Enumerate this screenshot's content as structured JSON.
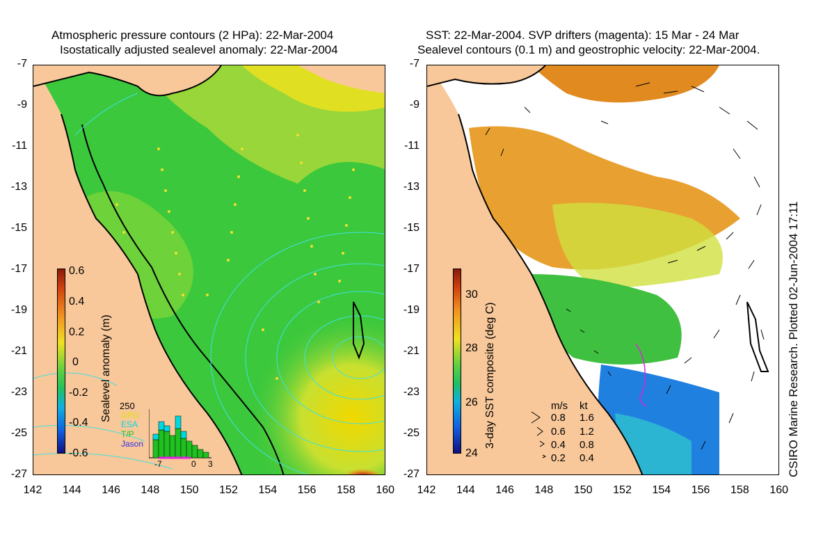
{
  "left_panel": {
    "title_line1": "Atmospheric pressure contours (2 HPa): 22-Mar-2004",
    "title_line2": "Isostatically adjusted sealevel anomaly: 22-Mar-2004",
    "colorbar": {
      "label": "Sealevel anomaly (m)",
      "ticks": [
        "0.6",
        "0.4",
        "0.2",
        "0",
        "-0.2",
        "-0.4",
        "-0.6"
      ]
    },
    "histogram": {
      "ymax_label": "250",
      "x_labels": [
        "-7",
        "0",
        "3"
      ],
      "legend": [
        {
          "name": "GFO",
          "color": "#e0e000"
        },
        {
          "name": "ESA",
          "color": "#00d8e0"
        },
        {
          "name": "T/P",
          "color": "#20c020"
        },
        {
          "name": "Jason",
          "color": "#3030e0"
        }
      ]
    }
  },
  "right_panel": {
    "title_line1": "SST: 22-Mar-2004. SVP drifters (magenta): 15 Mar - 24 Mar",
    "title_line2": "Sealevel contours (0.1 m) and geostrophic velocity: 22-Mar-2004.",
    "colorbar": {
      "label": "3-day SST composite (deg C)",
      "ticks": [
        "30",
        "28",
        "26",
        "24"
      ]
    },
    "velocity_legend": {
      "header_ms": "m/s",
      "header_kt": "kt",
      "rows": [
        {
          "ms": "0.8",
          "kt": "1.6"
        },
        {
          "ms": "0.6",
          "kt": "1.2"
        },
        {
          "ms": "0.4",
          "kt": "0.8"
        },
        {
          "ms": "0.2",
          "kt": "0.4"
        }
      ]
    },
    "credit": "CSIRO Marine Research. Plotted 02-Jun-2004 17:11"
  },
  "axes": {
    "lat_ticks": [
      "-7",
      "-9",
      "-11",
      "-13",
      "-15",
      "-17",
      "-19",
      "-21",
      "-23",
      "-25",
      "-27"
    ],
    "lon_ticks": [
      "142",
      "144",
      "146",
      "148",
      "150",
      "152",
      "154",
      "156",
      "158",
      "160"
    ]
  },
  "colors": {
    "land": "#f8c89a",
    "ocean_green": "#3cc83c",
    "ocean_yellow": "#d8e830",
    "ocean_orange": "#e08a20",
    "pressure_contour": "#40e0e0",
    "coast": "#000000"
  }
}
